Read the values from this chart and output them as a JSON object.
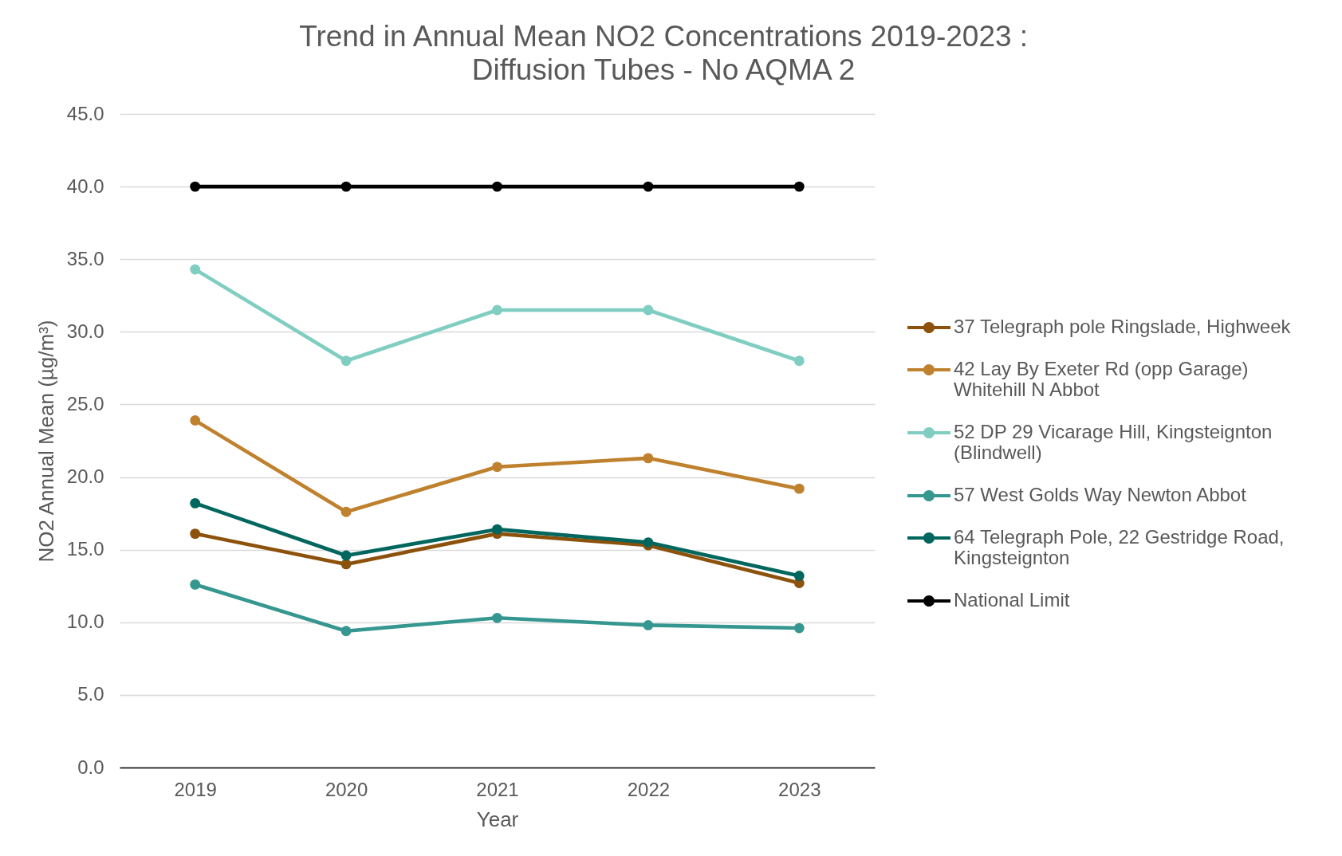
{
  "chart_data": {
    "type": "line",
    "title": "Trend in Annual Mean NO2 Concentrations 2019-2023 : Diffusion Tubes - No AQMA 2",
    "xlabel": "Year",
    "ylabel": "NO2 Annual Mean (µg/m³)",
    "categories": [
      "2019",
      "2020",
      "2021",
      "2022",
      "2023"
    ],
    "series": [
      {
        "name": "37 Telegraph pole Ringslade, Highweek",
        "color": "#8c510a",
        "values": [
          16.1,
          14.0,
          16.1,
          15.3,
          12.7
        ]
      },
      {
        "name": "42 Lay By Exeter Rd (opp Garage) Whitehill  N Abbot",
        "color": "#bf812d",
        "values": [
          23.9,
          17.6,
          20.7,
          21.3,
          19.2
        ]
      },
      {
        "name": "52 DP 29 Vicarage Hill, Kingsteignton (Blindwell)",
        "color": "#80cdc1",
        "values": [
          34.3,
          28.0,
          31.5,
          31.5,
          28.0
        ]
      },
      {
        "name": "57 West Golds Way Newton Abbot",
        "color": "#35978f",
        "values": [
          12.6,
          9.4,
          10.3,
          9.8,
          9.6
        ]
      },
      {
        "name": "64 Telegraph Pole,  22 Gestridge Road, Kingsteignton",
        "color": "#01665e",
        "values": [
          18.2,
          14.6,
          16.4,
          15.5,
          13.2
        ]
      },
      {
        "name": "National Limit",
        "color": "#000000",
        "values": [
          40.0,
          40.0,
          40.0,
          40.0,
          40.0
        ]
      }
    ],
    "ylim": [
      0,
      45
    ],
    "yticks": [
      {
        "value": 0,
        "label": "0.0"
      },
      {
        "value": 5,
        "label": "5.0"
      },
      {
        "value": 10,
        "label": "10.0"
      },
      {
        "value": 15,
        "label": "15.0"
      },
      {
        "value": 20,
        "label": "20.0"
      },
      {
        "value": 25,
        "label": "25.0"
      },
      {
        "value": 30,
        "label": "30.0"
      },
      {
        "value": 35,
        "label": "35.0"
      },
      {
        "value": 40,
        "label": "40.0"
      },
      {
        "value": 45,
        "label": "45.0"
      }
    ],
    "grid": "y",
    "legend": "right",
    "marker": "circle",
    "line_style": "solid"
  }
}
